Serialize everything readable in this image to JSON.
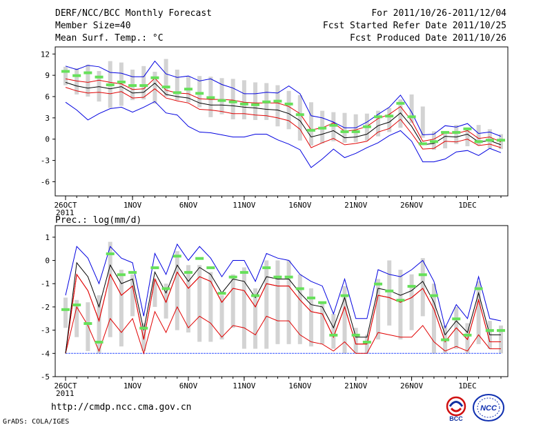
{
  "header": {
    "title": "DERF/NCC/BCC Monthly Forecast",
    "member_size": "Member Size=40",
    "variable": "Mean Surf. Temp.: °C",
    "period": "For 2011/10/26-2011/12/04",
    "started_refer": "Fcst Started Refer Date 2011/10/25",
    "produced": "Fcst Produced Date 2011/10/26"
  },
  "footer": {
    "url": "http://cmdp.ncc.cma.gov.cn",
    "grads": "GrADS: COLA/IGES",
    "logo_bcc": "BCC",
    "logo_ncc": "NCC"
  },
  "colors": {
    "box": "#d3d3d3",
    "median": "#66e05a",
    "mean": "#000000",
    "spread": "#e00000",
    "envelope": "#0000e0",
    "floor": "#3050ff"
  },
  "chart_data": [
    {
      "type": "box-plume",
      "title": "Mean Surf. Temp.: °C",
      "ylabel": "°C",
      "ylim": [
        -8,
        13
      ],
      "yticks": [
        12,
        9,
        6,
        3,
        0,
        -3,
        -6
      ],
      "xticks": [
        {
          "day": 0,
          "label": "26OCT",
          "sub": "2011"
        },
        {
          "day": 6,
          "label": "1NOV"
        },
        {
          "day": 11,
          "label": "6NOV"
        },
        {
          "day": 16,
          "label": "11NOV"
        },
        {
          "day": 21,
          "label": "16NOV"
        },
        {
          "day": 26,
          "label": "21NOV"
        },
        {
          "day": 31,
          "label": "26NOV"
        },
        {
          "day": 36,
          "label": "1DEC"
        }
      ],
      "days": 40,
      "series": {
        "box_top": [
          10.2,
          10.0,
          10.5,
          9.6,
          11,
          10.8,
          9.8,
          10.3,
          9.5,
          11.3,
          9.8,
          8.8,
          8.9,
          8.8,
          8.6,
          8.5,
          8.3,
          8.0,
          7.9,
          7.6,
          6.8,
          6.2,
          5.2,
          4.0,
          3.8,
          3.7,
          3.5,
          3.6,
          4.0,
          4.4,
          5.6,
          6.3,
          4.6,
          1.1,
          0.9,
          2.0,
          1.5,
          2.0,
          1.4,
          0.7
        ],
        "box_bottom": [
          7.6,
          6.3,
          6.0,
          5.3,
          4.4,
          4.7,
          5.5,
          5.6,
          5.0,
          6.0,
          5.5,
          5.2,
          4.5,
          3.1,
          3.5,
          2.8,
          2.8,
          2.7,
          2.7,
          1.8,
          1.4,
          -0.2,
          -0.9,
          -0.6,
          -0.3,
          -0.5,
          -0.4,
          -0.2,
          0.4,
          1.0,
          1.6,
          2.3,
          0.2,
          -1.5,
          -1.3,
          -0.7,
          -1.0,
          -0.9,
          -1.3,
          -1.4
        ],
        "median": [
          9.6,
          9.0,
          9.4,
          8.8,
          7.7,
          8.1,
          7.6,
          7.6,
          8.7,
          7.4,
          6.6,
          7.1,
          6.5,
          5.9,
          5.5,
          5.3,
          5.0,
          4.9,
          5.3,
          5.4,
          5.0,
          3.5,
          1.3,
          1.6,
          2.0,
          1.1,
          1.1,
          1.8,
          3.2,
          3.3,
          5.1,
          3.2,
          -0.6,
          -0.3,
          1.0,
          1.0,
          1.5,
          -0.3,
          -0.1,
          -0.1
        ],
        "mean": [
          8.0,
          7.5,
          7.2,
          7.4,
          7.1,
          7.4,
          6.5,
          6.6,
          7.9,
          6.3,
          6.0,
          5.8,
          5.1,
          4.8,
          4.8,
          4.7,
          4.5,
          4.4,
          4.2,
          4.1,
          3.6,
          2.6,
          0.3,
          0.7,
          1.2,
          0.2,
          0.3,
          0.7,
          1.9,
          2.4,
          3.7,
          1.8,
          -0.8,
          -0.6,
          0.4,
          0.3,
          0.7,
          -0.4,
          -0.2,
          -0.8
        ],
        "upper_spread": [
          8.5,
          8.2,
          8.0,
          8.3,
          8.0,
          7.8,
          7.0,
          7.1,
          8.6,
          6.9,
          6.5,
          6.4,
          5.7,
          5.6,
          5.6,
          5.5,
          5.2,
          5.1,
          5.1,
          5.1,
          4.6,
          3.6,
          1.3,
          1.6,
          2.3,
          1.1,
          1.3,
          1.8,
          2.9,
          3.5,
          4.6,
          2.6,
          -0.3,
          0.0,
          0.9,
          0.8,
          1.2,
          0.1,
          0.3,
          -0.4
        ],
        "lower_spread": [
          7.3,
          6.8,
          6.5,
          6.6,
          6.4,
          6.7,
          5.8,
          5.9,
          7.1,
          5.8,
          5.4,
          5.1,
          4.2,
          4.1,
          3.9,
          3.6,
          3.6,
          3.4,
          3.3,
          3.0,
          2.6,
          1.4,
          -1.2,
          -0.5,
          0.1,
          -0.8,
          -0.6,
          -0.3,
          1.0,
          1.5,
          2.8,
          0.8,
          -1.4,
          -1.3,
          -0.3,
          -0.4,
          0.0,
          -0.9,
          -0.7,
          -1.2
        ],
        "envelope_max": [
          10.3,
          9.8,
          10.4,
          10.2,
          9.4,
          9.3,
          8.8,
          8.8,
          11.0,
          9.2,
          8.7,
          8.9,
          8.2,
          8.5,
          7.7,
          7.2,
          6.4,
          6.4,
          6.6,
          6.5,
          7.5,
          6.4,
          3.3,
          3.0,
          2.4,
          1.6,
          1.6,
          2.4,
          3.5,
          4.5,
          6.2,
          3.8,
          0.6,
          0.7,
          1.9,
          1.7,
          2.2,
          0.8,
          1.0,
          0.4
        ],
        "envelope_min": [
          5.2,
          4.1,
          2.7,
          3.6,
          4.3,
          4.5,
          3.8,
          4.5,
          5.3,
          3.7,
          3.4,
          1.8,
          1.0,
          0.9,
          0.6,
          0.3,
          0.3,
          0.7,
          0.7,
          -0.1,
          -0.7,
          -1.5,
          -4.0,
          -2.8,
          -1.4,
          -2.6,
          -2.0,
          -1.2,
          -0.5,
          0.5,
          1.2,
          -0.3,
          -3.2,
          -3.2,
          -2.8,
          -1.8,
          -1.6,
          -2.3,
          -1.3,
          -1.9
        ]
      }
    },
    {
      "type": "box-plume",
      "title": "Prec.: log(mm/d)",
      "ylabel": "log(mm/d)",
      "ylim": [
        -5,
        1.5
      ],
      "yticks": [
        1,
        0,
        -1,
        -2,
        -3,
        -4,
        -5
      ],
      "xticks": [
        {
          "day": 0,
          "label": "26OCT",
          "sub": "2011"
        },
        {
          "day": 6,
          "label": "1NOV"
        },
        {
          "day": 11,
          "label": "6NOV"
        },
        {
          "day": 16,
          "label": "11NOV"
        },
        {
          "day": 21,
          "label": "16NOV"
        },
        {
          "day": 26,
          "label": "21NOV"
        },
        {
          "day": 31,
          "label": "26NOV"
        },
        {
          "day": 36,
          "label": "1DEC"
        }
      ],
      "days": 40,
      "series": {
        "box_top": [
          -1.6,
          -1.7,
          -1.8,
          -1.5,
          0.8,
          -0.4,
          -0.6,
          -2.7,
          -0.8,
          -1.0,
          0.4,
          -0.2,
          -0.2,
          -0.5,
          -1.5,
          -0.6,
          -0.3,
          -1.2,
          0.0,
          0.0,
          0.0,
          -0.6,
          -1.2,
          -1.8,
          -2.3,
          -1.1,
          -2.9,
          -3.2,
          -0.8,
          0.0,
          -0.4,
          -0.6,
          0.1,
          -1.0,
          -2.8,
          -2.0,
          -2.7,
          -0.9,
          -2.6,
          -2.8
        ],
        "box_bottom": [
          -2.9,
          -3.3,
          -3.9,
          -4.0,
          -3.3,
          -3.7,
          -2.4,
          -3.9,
          -2.0,
          -2.5,
          -3.0,
          -3.1,
          -3.5,
          -3.5,
          -3.4,
          -2.9,
          -3.8,
          -3.8,
          -3.8,
          -3.6,
          -3.6,
          -3.6,
          -3.7,
          -3.6,
          -3.8,
          -4.0,
          -4.0,
          -4.0,
          -3.4,
          -2.8,
          -3.4,
          -3.0,
          -2.4,
          -4.0,
          -4.0,
          -3.8,
          -4.0,
          -3.6,
          -3.8,
          -4.0
        ],
        "median": [
          -2.1,
          -1.9,
          -2.7,
          -3.5,
          0.3,
          -0.6,
          -0.5,
          -2.9,
          -0.3,
          -1.2,
          0.2,
          -0.5,
          0.1,
          -0.3,
          -1.4,
          -0.7,
          -0.5,
          -1.5,
          -0.3,
          -0.7,
          -0.7,
          -1.2,
          -1.6,
          -1.8,
          -3.2,
          -1.5,
          -3.2,
          -3.5,
          -1.0,
          -1.3,
          -1.7,
          -1.1,
          -0.6,
          -1.5,
          -3.4,
          -2.5,
          -3.2,
          -1.2,
          -3.0,
          -3.0
        ],
        "mean": [
          -4.0,
          -0.1,
          -0.7,
          -2.0,
          -0.2,
          -1.0,
          -0.8,
          -3.0,
          -0.5,
          -1.4,
          -0.2,
          -0.9,
          -0.3,
          -0.6,
          -1.4,
          -0.8,
          -0.9,
          -1.6,
          -0.7,
          -0.8,
          -0.8,
          -1.4,
          -1.9,
          -2.0,
          -2.9,
          -1.6,
          -3.3,
          -3.3,
          -1.2,
          -1.3,
          -1.5,
          -1.3,
          -0.9,
          -1.8,
          -3.2,
          -2.6,
          -3.1,
          -1.4,
          -3.2,
          -3.2
        ],
        "upper_spread": [
          -4.0,
          -0.6,
          -1.3,
          -2.6,
          -0.6,
          -1.5,
          -1.1,
          -3.4,
          -0.8,
          -1.8,
          -0.5,
          -1.2,
          -0.7,
          -0.9,
          -1.8,
          -1.2,
          -1.3,
          -2.0,
          -1.0,
          -1.1,
          -1.1,
          -1.7,
          -2.2,
          -2.3,
          -3.3,
          -2.0,
          -3.6,
          -3.6,
          -1.5,
          -1.6,
          -1.8,
          -1.6,
          -1.2,
          -2.1,
          -3.5,
          -2.9,
          -3.4,
          -1.7,
          -3.5,
          -3.5
        ],
        "lower_spread": [
          -4.0,
          -0.6,
          -1.3,
          -2.6,
          -0.6,
          -1.5,
          -1.1,
          -3.4,
          -0.8,
          -1.8,
          -0.5,
          -1.2,
          -0.7,
          -0.9,
          -1.8,
          -1.2,
          -1.3,
          -2.0,
          -1.0,
          -1.1,
          -1.1,
          -1.7,
          -2.2,
          -2.3,
          -3.3,
          -2.0,
          -3.6,
          -3.6,
          -1.5,
          -1.6,
          -1.8,
          -1.6,
          -1.2,
          -2.1,
          -3.5,
          -2.9,
          -3.4,
          -1.7,
          -3.5,
          -3.5
        ],
        "lower_spread2": [
          -4.0,
          -2.0,
          -2.8,
          -3.9,
          -2.5,
          -3.1,
          -2.5,
          -4.0,
          -2.2,
          -3.1,
          -2.0,
          -2.9,
          -2.4,
          -2.7,
          -3.3,
          -2.8,
          -2.9,
          -3.2,
          -2.4,
          -2.6,
          -2.6,
          -3.2,
          -3.5,
          -3.6,
          -3.9,
          -3.5,
          -4.0,
          -4.0,
          -3.1,
          -3.2,
          -3.3,
          -3.3,
          -2.8,
          -3.5,
          -3.9,
          -3.7,
          -3.9,
          -3.2,
          -3.8,
          -3.8
        ],
        "envelope_max": [
          -1.5,
          0.6,
          0.1,
          -1.0,
          0.6,
          0.1,
          -0.1,
          -2.4,
          0.3,
          -0.6,
          0.7,
          0.0,
          0.6,
          0.1,
          -0.7,
          0.0,
          0.0,
          -0.9,
          0.3,
          0.1,
          0.0,
          -0.6,
          -0.9,
          -1.1,
          -2.3,
          -0.8,
          -2.5,
          -2.5,
          -0.4,
          -0.6,
          -0.7,
          -0.4,
          0.0,
          -0.9,
          -2.9,
          -1.9,
          -2.5,
          -0.7,
          -2.5,
          -2.6
        ],
        "floor": -4.0
      }
    }
  ]
}
